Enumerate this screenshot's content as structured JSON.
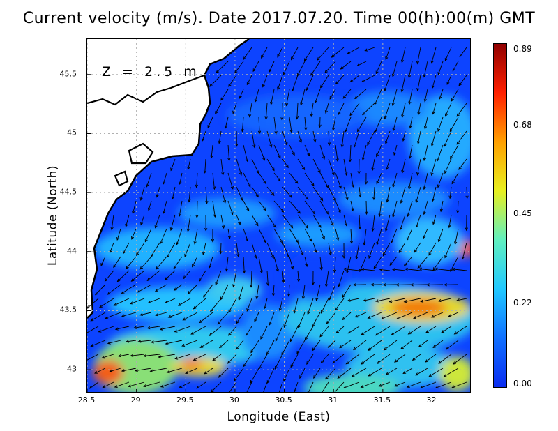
{
  "title": "Current velocity (m/s). Date 2017.07.20. Time 00(h):00(m) GMT",
  "depth_label": "Z = 2.5 m",
  "x_axis": {
    "label": "Longitude (East)",
    "range": [
      28.5,
      32.4
    ],
    "ticks": [
      "28.5",
      "29",
      "29.5",
      "30",
      "30.5",
      "31",
      "31.5",
      "32"
    ]
  },
  "y_axis": {
    "label": "Latitude (North)",
    "range": [
      42.8,
      45.8
    ],
    "ticks": [
      "43",
      "43.5",
      "44",
      "44.5",
      "45",
      "45.5"
    ]
  },
  "colorbar": {
    "ticks": [
      "0.00",
      "0.22",
      "0.45",
      "0.68",
      "0.89"
    ],
    "range": [
      0.0,
      0.89
    ],
    "colors": [
      "#0a2cf0",
      "#1070ff",
      "#20c8ff",
      "#60f0c0",
      "#e8f020",
      "#ffa000",
      "#ff2000",
      "#900000"
    ]
  },
  "grid": "dotted",
  "colors": {
    "land": "#ffffff",
    "coastline": "#000000",
    "arrow": "#000000"
  }
}
